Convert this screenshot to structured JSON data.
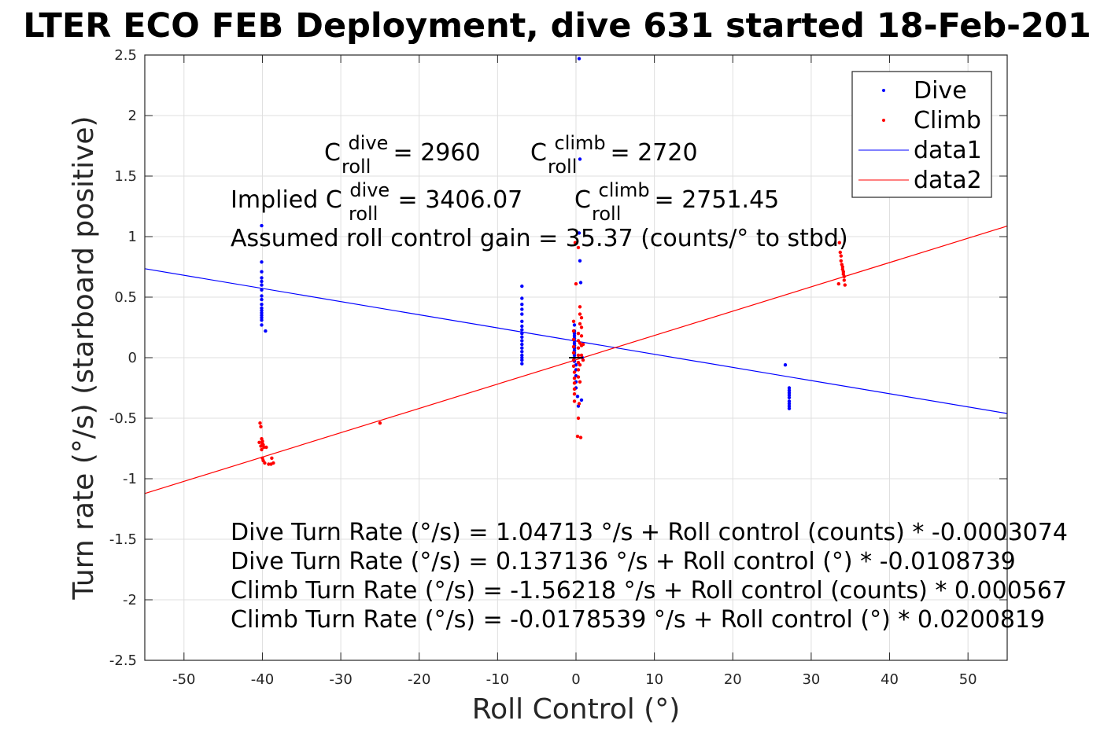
{
  "chart_data": {
    "type": "scatter",
    "title": "LTER ECO FEB Deployment, dive 631 started 18-Feb-201",
    "xlabel": "Roll Control (°)",
    "ylabel": "Turn rate (°/s) (starboard positive)",
    "xlim": [
      -55,
      55
    ],
    "ylim": [
      -2.5,
      2.5
    ],
    "xticks": [
      -50,
      -40,
      -30,
      -20,
      -10,
      0,
      10,
      20,
      30,
      40,
      50
    ],
    "yticks": [
      -2.5,
      -2,
      -1.5,
      -1,
      -0.5,
      0,
      0.5,
      1,
      1.5,
      2,
      2.5
    ],
    "grid": true,
    "legend_position": "top-right",
    "colors": {
      "dive": "#0000ff",
      "climb": "#ff0000",
      "axes": "#262626",
      "grid": "#dfdfdf"
    },
    "series": [
      {
        "name": "Dive",
        "kind": "points",
        "color": "#0000ff",
        "x": [
          -40.1,
          -40.1,
          -40.1,
          -40.1,
          -40.1,
          -40.1,
          -40.1,
          -40.1,
          -40.1,
          -40.1,
          -40.1,
          -40.1,
          -40.1,
          -40.1,
          -40.1,
          -40.1,
          -40.1,
          -39.6,
          -6.9,
          -6.9,
          -6.9,
          -6.9,
          -6.9,
          -6.9,
          -6.9,
          -6.9,
          -6.9,
          -6.9,
          -6.9,
          -6.9,
          -6.9,
          -6.9,
          -6.9,
          -6.9,
          -6.9,
          -6.9,
          -0.2,
          -0.2,
          -0.2,
          -0.2,
          -0.2,
          -0.2,
          -0.2,
          -0.2,
          -0.2,
          -0.2,
          -0.2,
          -0.2,
          -0.2,
          -0.2,
          0.0,
          0.0,
          0.0,
          0.0,
          0.0,
          0.2,
          0.3,
          0.4,
          0.4,
          0.5,
          0.5,
          0.6,
          0.7,
          0.8,
          26.7,
          27.2,
          27.2,
          27.2,
          27.2,
          27.2,
          27.2,
          27.2,
          27.2,
          27.2
        ],
        "y": [
          1.09,
          0.79,
          0.71,
          0.66,
          0.63,
          0.6,
          0.56,
          0.51,
          0.48,
          0.44,
          0.41,
          0.39,
          0.37,
          0.35,
          0.33,
          0.31,
          0.27,
          0.22,
          0.59,
          0.49,
          0.44,
          0.4,
          0.36,
          0.3,
          0.26,
          0.23,
          0.2,
          0.17,
          0.14,
          0.11,
          0.08,
          0.05,
          0.02,
          0.0,
          -0.02,
          -0.05,
          0.27,
          0.22,
          0.2,
          0.18,
          0.16,
          0.14,
          0.12,
          0.1,
          0.08,
          0.06,
          0.04,
          0.02,
          0.0,
          -0.03,
          -0.06,
          -0.1,
          -0.15,
          -0.2,
          -0.25,
          -0.32,
          -0.4,
          2.47,
          1.03,
          1.64,
          0.8,
          0.62,
          -0.35,
          0.0,
          -0.06,
          -0.25,
          -0.27,
          -0.29,
          -0.31,
          -0.33,
          -0.36,
          -0.38,
          -0.4,
          -0.42
        ]
      },
      {
        "name": "Climb",
        "kind": "points",
        "color": "#ff0000",
        "x": [
          -40.3,
          -40.2,
          -40.1,
          -40.0,
          -40.0,
          -39.9,
          -39.8,
          -40.4,
          -40.2,
          -40.1,
          -40.0,
          -39.9,
          -39.7,
          -39.5,
          -39.2,
          -38.9,
          -38.6,
          -38.8,
          -25.0,
          -0.3,
          -0.3,
          -0.3,
          -0.3,
          -0.3,
          -0.3,
          -0.3,
          -0.2,
          -0.2,
          -0.2,
          -0.2,
          -0.2,
          -0.2,
          0.3,
          0.3,
          0.3,
          0.3,
          0.3,
          0.3,
          0.3,
          0.5,
          0.5,
          0.5,
          0.5,
          0.5,
          0.5,
          0.7,
          0.7,
          0.7,
          0.7,
          0.7,
          0.3,
          0.4,
          0.2,
          0.6,
          0.9,
          0.9,
          0.0,
          0.3,
          -0.1,
          33.6,
          33.7,
          33.8,
          33.8,
          33.9,
          34.0,
          34.0,
          34.1,
          34.1,
          34.2,
          34.2,
          34.3,
          33.5
        ],
        "y": [
          -0.54,
          -0.57,
          -0.67,
          -0.69,
          -0.71,
          -0.72,
          -0.74,
          -0.7,
          -0.73,
          -0.76,
          -0.83,
          -0.85,
          -0.87,
          -0.74,
          -0.88,
          -0.88,
          -0.87,
          -0.83,
          -0.54,
          0.3,
          0.22,
          0.15,
          0.09,
          0.04,
          -0.02,
          -0.07,
          -0.12,
          -0.17,
          -0.21,
          -0.26,
          -0.3,
          -0.36,
          0.2,
          0.14,
          0.08,
          0.02,
          -0.04,
          -0.1,
          -0.16,
          0.42,
          0.36,
          0.28,
          0.12,
          -0.06,
          -0.2,
          0.33,
          0.25,
          0.18,
          0.1,
          0.02,
          -0.5,
          -0.38,
          -0.65,
          -0.66,
          0.11,
          -0.02,
          0.61,
          0.91,
          0.95,
          0.95,
          0.87,
          0.84,
          0.8,
          0.77,
          0.75,
          0.73,
          0.71,
          0.69,
          0.67,
          0.64,
          0.6,
          0.61
        ]
      },
      {
        "name": "data1",
        "kind": "line",
        "color": "#0000ff",
        "x": [
          -55,
          55
        ],
        "y": [
          0.7352,
          -0.4608
        ]
      },
      {
        "name": "data2",
        "kind": "line",
        "color": "#ff0000",
        "x": [
          -55,
          55
        ],
        "y": [
          -1.1223,
          1.0867
        ]
      }
    ],
    "annotations": {
      "cdive_label": "C",
      "cdive_sup": "dive",
      "cdive_sub": "roll",
      "cdive_value": " = 2960",
      "cclimb_label": "C",
      "cclimb_sup": "climb",
      "cclimb_sub": "roll",
      "cclimb_value": " = 2720",
      "implied_prefix": "Implied C",
      "implied_sup": "dive",
      "implied_sub": "roll",
      "implied_value": " = 3406.07",
      "implied_climb_label": "C",
      "implied_climb_sup": "climb",
      "implied_climb_sub": "roll",
      "implied_climb_value": " = 2751.45",
      "gain_line": "Assumed roll control gain = 35.37 (counts/° to stbd)",
      "fit_lines": [
        "Dive Turn Rate (°/s) = 1.04713 °/s + Roll control (counts) * -0.0003074",
        "Dive Turn Rate (°/s) = 0.137136 °/s + Roll control (°) * -0.0108739",
        "Climb Turn Rate (°/s) = -1.56218 °/s + Roll control (counts) * 0.000567",
        "Climb Turn Rate (°/s) = -0.0178539 °/s + Roll control (°) * 0.0200819"
      ]
    }
  }
}
